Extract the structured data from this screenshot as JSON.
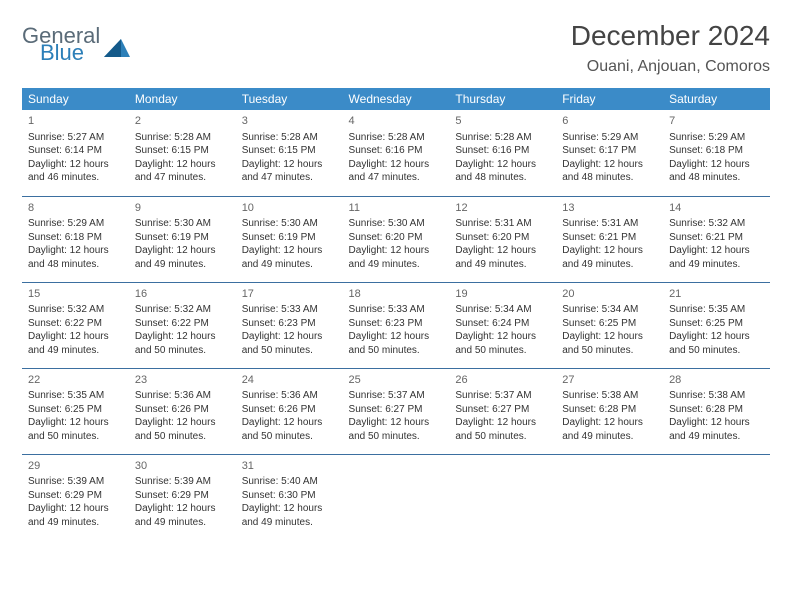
{
  "brand": {
    "word1": "General",
    "word2": "Blue",
    "triangle_color": "#2c7fb8"
  },
  "title": "December 2024",
  "location": "Ouani, Anjouan, Comoros",
  "colors": {
    "header_bg": "#3b8bc8",
    "header_text": "#ffffff",
    "row_border": "#3b6fa0",
    "logo_gray": "#5a6b78",
    "logo_blue": "#2c7fb8"
  },
  "weekdays": [
    "Sunday",
    "Monday",
    "Tuesday",
    "Wednesday",
    "Thursday",
    "Friday",
    "Saturday"
  ],
  "weeks": [
    [
      {
        "n": "1",
        "sr": "5:27 AM",
        "ss": "6:14 PM",
        "dl": "12 hours and 46 minutes."
      },
      {
        "n": "2",
        "sr": "5:28 AM",
        "ss": "6:15 PM",
        "dl": "12 hours and 47 minutes."
      },
      {
        "n": "3",
        "sr": "5:28 AM",
        "ss": "6:15 PM",
        "dl": "12 hours and 47 minutes."
      },
      {
        "n": "4",
        "sr": "5:28 AM",
        "ss": "6:16 PM",
        "dl": "12 hours and 47 minutes."
      },
      {
        "n": "5",
        "sr": "5:28 AM",
        "ss": "6:16 PM",
        "dl": "12 hours and 48 minutes."
      },
      {
        "n": "6",
        "sr": "5:29 AM",
        "ss": "6:17 PM",
        "dl": "12 hours and 48 minutes."
      },
      {
        "n": "7",
        "sr": "5:29 AM",
        "ss": "6:18 PM",
        "dl": "12 hours and 48 minutes."
      }
    ],
    [
      {
        "n": "8",
        "sr": "5:29 AM",
        "ss": "6:18 PM",
        "dl": "12 hours and 48 minutes."
      },
      {
        "n": "9",
        "sr": "5:30 AM",
        "ss": "6:19 PM",
        "dl": "12 hours and 49 minutes."
      },
      {
        "n": "10",
        "sr": "5:30 AM",
        "ss": "6:19 PM",
        "dl": "12 hours and 49 minutes."
      },
      {
        "n": "11",
        "sr": "5:30 AM",
        "ss": "6:20 PM",
        "dl": "12 hours and 49 minutes."
      },
      {
        "n": "12",
        "sr": "5:31 AM",
        "ss": "6:20 PM",
        "dl": "12 hours and 49 minutes."
      },
      {
        "n": "13",
        "sr": "5:31 AM",
        "ss": "6:21 PM",
        "dl": "12 hours and 49 minutes."
      },
      {
        "n": "14",
        "sr": "5:32 AM",
        "ss": "6:21 PM",
        "dl": "12 hours and 49 minutes."
      }
    ],
    [
      {
        "n": "15",
        "sr": "5:32 AM",
        "ss": "6:22 PM",
        "dl": "12 hours and 49 minutes."
      },
      {
        "n": "16",
        "sr": "5:32 AM",
        "ss": "6:22 PM",
        "dl": "12 hours and 50 minutes."
      },
      {
        "n": "17",
        "sr": "5:33 AM",
        "ss": "6:23 PM",
        "dl": "12 hours and 50 minutes."
      },
      {
        "n": "18",
        "sr": "5:33 AM",
        "ss": "6:23 PM",
        "dl": "12 hours and 50 minutes."
      },
      {
        "n": "19",
        "sr": "5:34 AM",
        "ss": "6:24 PM",
        "dl": "12 hours and 50 minutes."
      },
      {
        "n": "20",
        "sr": "5:34 AM",
        "ss": "6:25 PM",
        "dl": "12 hours and 50 minutes."
      },
      {
        "n": "21",
        "sr": "5:35 AM",
        "ss": "6:25 PM",
        "dl": "12 hours and 50 minutes."
      }
    ],
    [
      {
        "n": "22",
        "sr": "5:35 AM",
        "ss": "6:25 PM",
        "dl": "12 hours and 50 minutes."
      },
      {
        "n": "23",
        "sr": "5:36 AM",
        "ss": "6:26 PM",
        "dl": "12 hours and 50 minutes."
      },
      {
        "n": "24",
        "sr": "5:36 AM",
        "ss": "6:26 PM",
        "dl": "12 hours and 50 minutes."
      },
      {
        "n": "25",
        "sr": "5:37 AM",
        "ss": "6:27 PM",
        "dl": "12 hours and 50 minutes."
      },
      {
        "n": "26",
        "sr": "5:37 AM",
        "ss": "6:27 PM",
        "dl": "12 hours and 50 minutes."
      },
      {
        "n": "27",
        "sr": "5:38 AM",
        "ss": "6:28 PM",
        "dl": "12 hours and 49 minutes."
      },
      {
        "n": "28",
        "sr": "5:38 AM",
        "ss": "6:28 PM",
        "dl": "12 hours and 49 minutes."
      }
    ],
    [
      {
        "n": "29",
        "sr": "5:39 AM",
        "ss": "6:29 PM",
        "dl": "12 hours and 49 minutes."
      },
      {
        "n": "30",
        "sr": "5:39 AM",
        "ss": "6:29 PM",
        "dl": "12 hours and 49 minutes."
      },
      {
        "n": "31",
        "sr": "5:40 AM",
        "ss": "6:30 PM",
        "dl": "12 hours and 49 minutes."
      },
      null,
      null,
      null,
      null
    ]
  ],
  "labels": {
    "sunrise": "Sunrise:",
    "sunset": "Sunset:",
    "daylight": "Daylight:"
  }
}
